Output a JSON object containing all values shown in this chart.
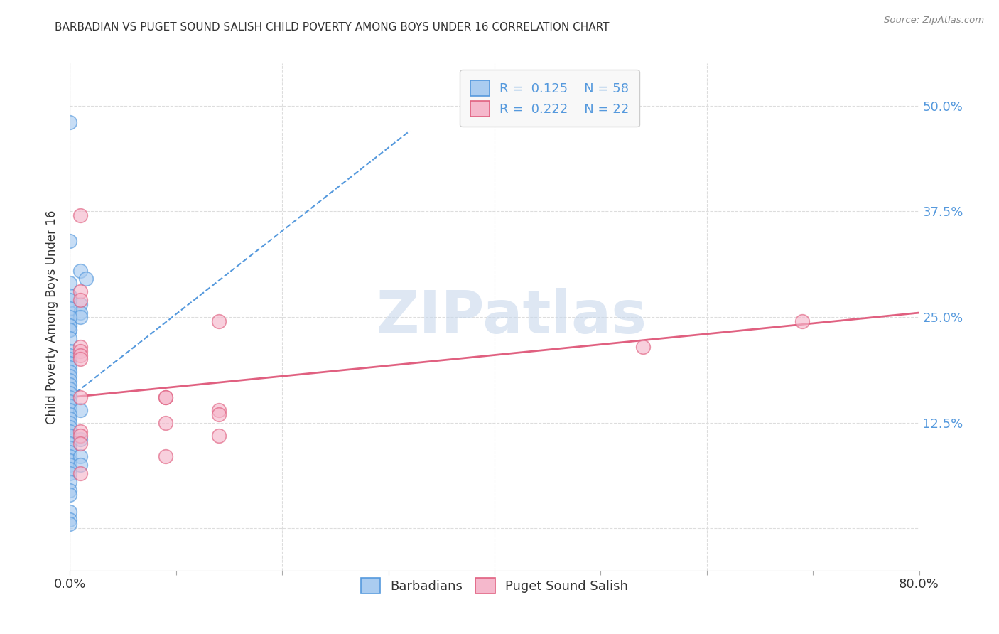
{
  "title": "BARBADIAN VS PUGET SOUND SALISH CHILD POVERTY AMONG BOYS UNDER 16 CORRELATION CHART",
  "source": "Source: ZipAtlas.com",
  "ylabel": "Child Poverty Among Boys Under 16",
  "xlim": [
    0.0,
    0.8
  ],
  "ylim": [
    -0.05,
    0.55
  ],
  "xticks": [
    0.0,
    0.1,
    0.2,
    0.3,
    0.4,
    0.5,
    0.6,
    0.7,
    0.8
  ],
  "xticklabels": [
    "0.0%",
    "",
    "",
    "",
    "",
    "",
    "",
    "",
    "80.0%"
  ],
  "ytick_positions": [
    0.0,
    0.125,
    0.25,
    0.375,
    0.5
  ],
  "ytick_labels": [
    "",
    "12.5%",
    "25.0%",
    "37.5%",
    "50.0%"
  ],
  "blue_R": "0.125",
  "blue_N": "58",
  "pink_R": "0.222",
  "pink_N": "22",
  "blue_color": "#aaccf0",
  "blue_edge_color": "#5599dd",
  "pink_color": "#f5b8cc",
  "pink_edge_color": "#e06080",
  "blue_scatter": [
    [
      0.0,
      0.48
    ],
    [
      0.0,
      0.34
    ],
    [
      0.01,
      0.305
    ],
    [
      0.015,
      0.295
    ],
    [
      0.0,
      0.29
    ],
    [
      0.0,
      0.275
    ],
    [
      0.01,
      0.265
    ],
    [
      0.0,
      0.255
    ],
    [
      0.01,
      0.255
    ],
    [
      0.0,
      0.245
    ],
    [
      0.0,
      0.24
    ],
    [
      0.0,
      0.235
    ],
    [
      0.0,
      0.27
    ],
    [
      0.0,
      0.26
    ],
    [
      0.01,
      0.25
    ],
    [
      0.0,
      0.25
    ],
    [
      0.0,
      0.24
    ],
    [
      0.0,
      0.235
    ],
    [
      0.0,
      0.225
    ],
    [
      0.0,
      0.21
    ],
    [
      0.0,
      0.205
    ],
    [
      0.0,
      0.2
    ],
    [
      0.0,
      0.195
    ],
    [
      0.0,
      0.19
    ],
    [
      0.0,
      0.185
    ],
    [
      0.0,
      0.18
    ],
    [
      0.0,
      0.175
    ],
    [
      0.0,
      0.17
    ],
    [
      0.0,
      0.165
    ],
    [
      0.0,
      0.16
    ],
    [
      0.0,
      0.155
    ],
    [
      0.0,
      0.15
    ],
    [
      0.0,
      0.145
    ],
    [
      0.0,
      0.14
    ],
    [
      0.01,
      0.14
    ],
    [
      0.0,
      0.135
    ],
    [
      0.0,
      0.13
    ],
    [
      0.0,
      0.125
    ],
    [
      0.0,
      0.12
    ],
    [
      0.0,
      0.115
    ],
    [
      0.0,
      0.11
    ],
    [
      0.01,
      0.105
    ],
    [
      0.0,
      0.1
    ],
    [
      0.0,
      0.095
    ],
    [
      0.0,
      0.09
    ],
    [
      0.0,
      0.085
    ],
    [
      0.0,
      0.08
    ],
    [
      0.01,
      0.085
    ],
    [
      0.0,
      0.075
    ],
    [
      0.01,
      0.075
    ],
    [
      0.0,
      0.07
    ],
    [
      0.0,
      0.065
    ],
    [
      0.0,
      0.055
    ],
    [
      0.0,
      0.045
    ],
    [
      0.0,
      0.04
    ],
    [
      0.0,
      0.02
    ],
    [
      0.0,
      0.01
    ],
    [
      0.0,
      0.005
    ]
  ],
  "pink_scatter": [
    [
      0.01,
      0.37
    ],
    [
      0.01,
      0.28
    ],
    [
      0.01,
      0.27
    ],
    [
      0.14,
      0.245
    ],
    [
      0.01,
      0.215
    ],
    [
      0.01,
      0.21
    ],
    [
      0.01,
      0.205
    ],
    [
      0.01,
      0.2
    ],
    [
      0.54,
      0.215
    ],
    [
      0.69,
      0.245
    ],
    [
      0.01,
      0.155
    ],
    [
      0.09,
      0.155
    ],
    [
      0.09,
      0.155
    ],
    [
      0.14,
      0.14
    ],
    [
      0.14,
      0.135
    ],
    [
      0.09,
      0.125
    ],
    [
      0.01,
      0.115
    ],
    [
      0.01,
      0.11
    ],
    [
      0.14,
      0.11
    ],
    [
      0.01,
      0.1
    ],
    [
      0.09,
      0.085
    ],
    [
      0.01,
      0.065
    ]
  ],
  "blue_trend_x": [
    0.0,
    0.32
  ],
  "blue_trend_y": [
    0.155,
    0.47
  ],
  "pink_trend_x": [
    0.0,
    0.8
  ],
  "pink_trend_y": [
    0.155,
    0.255
  ],
  "watermark_text": "ZIPatlas",
  "watermark_color": "#c8d8ec",
  "background_color": "#ffffff",
  "grid_color": "#dddddd"
}
